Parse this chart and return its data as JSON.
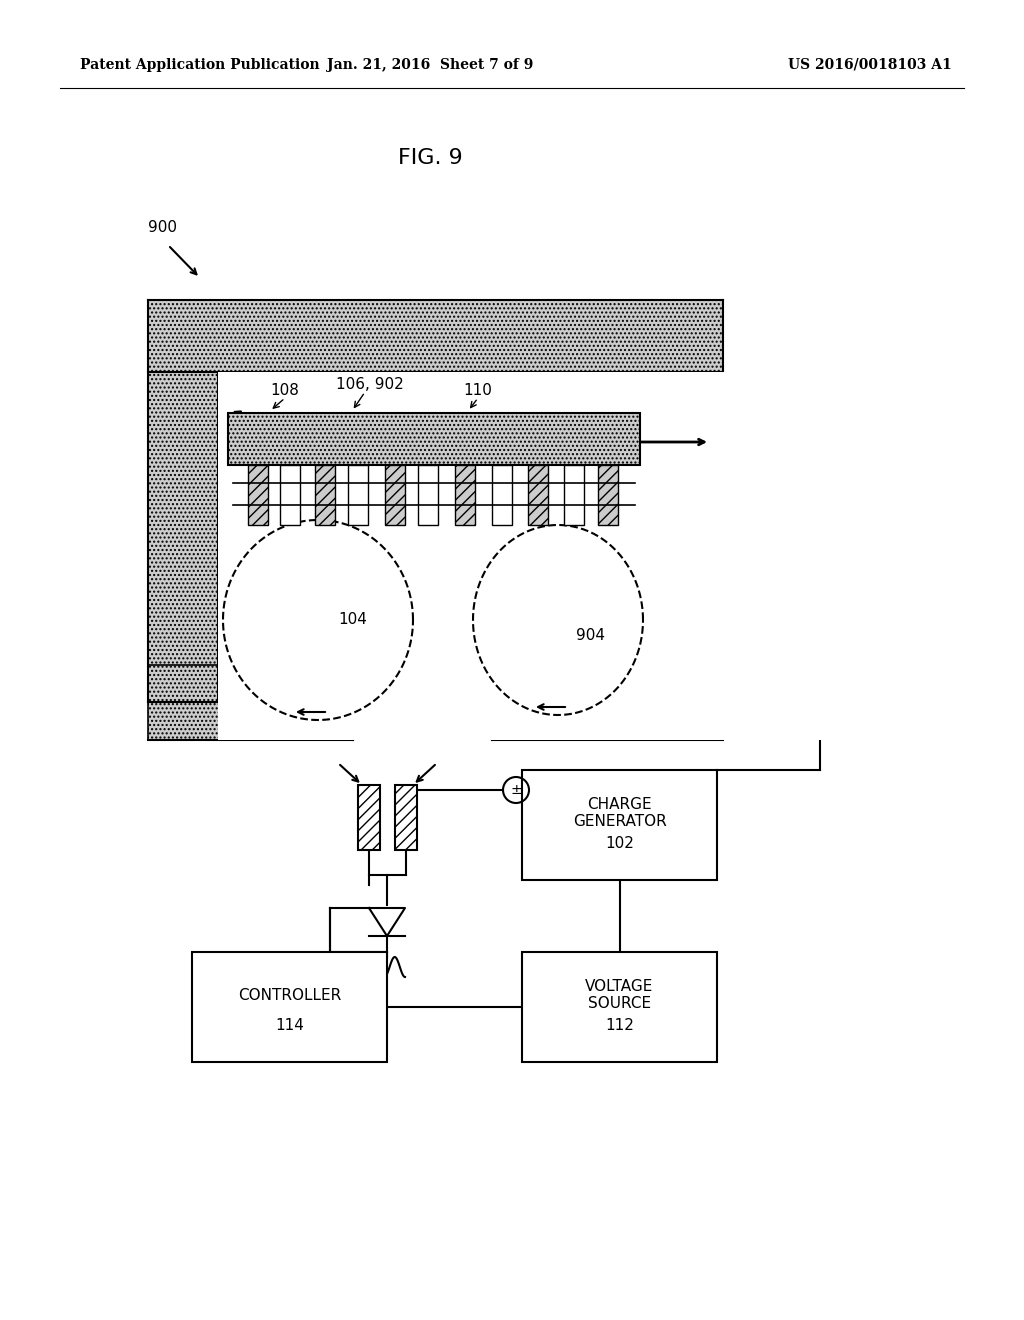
{
  "header_left": "Patent Application Publication",
  "header_center": "Jan. 21, 2016  Sheet 7 of 9",
  "header_right": "US 2016/0018103 A1",
  "fig_label": "FIG. 9",
  "ref_900": "900",
  "ref_108": "108",
  "ref_106_902": "106, 902",
  "ref_110": "110",
  "ref_104": "104",
  "ref_904": "904",
  "ref_102": "102",
  "ref_112": "112",
  "ref_114": "114",
  "box_charge": "CHARGE\nGENERATOR",
  "box_voltage": "VOLTAGE\nSOURCE",
  "box_controller": "CONTROLLER",
  "bg_color": "#ffffff",
  "line_color": "#000000"
}
